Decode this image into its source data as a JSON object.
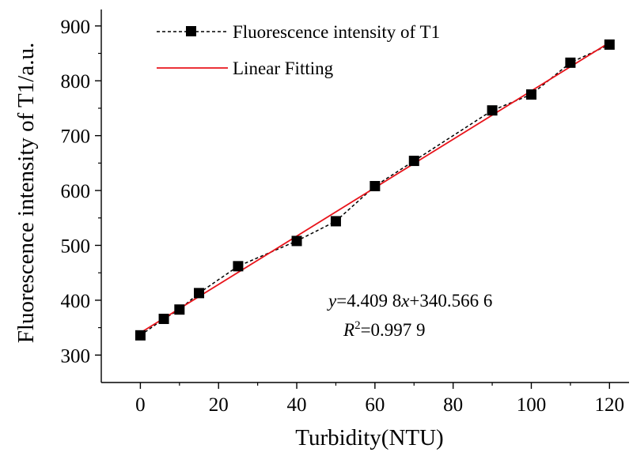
{
  "chart_data": {
    "type": "line",
    "title": "",
    "xlabel": "Turbidity(NTU)",
    "ylabel": "Fluorescence intensity of T1/a.u.",
    "xlim": [
      -10,
      125
    ],
    "ylim": [
      250,
      930
    ],
    "xticks": [
      0,
      20,
      40,
      60,
      80,
      100,
      120
    ],
    "yticks": [
      300,
      400,
      500,
      600,
      700,
      800,
      900
    ],
    "grid": false,
    "legend_position": "top-left",
    "series": [
      {
        "name": "Fluorescence intensity of T1",
        "style": "dashed-line-square-markers",
        "color": "#000000",
        "x": [
          0,
          6,
          10,
          15,
          25,
          40,
          50,
          60,
          70,
          90,
          100,
          110,
          120
        ],
        "y": [
          336,
          366,
          383,
          413,
          462,
          508,
          544,
          608,
          654,
          746,
          775,
          833,
          866
        ]
      },
      {
        "name": "Linear Fitting",
        "style": "solid-line",
        "color": "#e8141b",
        "slope": 4.4098,
        "intercept": 340.5666,
        "x": [
          0,
          120
        ]
      }
    ],
    "annotation": {
      "equation": {
        "y_var": "y",
        "eq_part1": "=4.409 8",
        "x_var": "x",
        "eq_part2": "+340.566 6"
      },
      "r2": {
        "r_var": "R",
        "sup": "2",
        "value": "=0.997 9"
      }
    }
  }
}
